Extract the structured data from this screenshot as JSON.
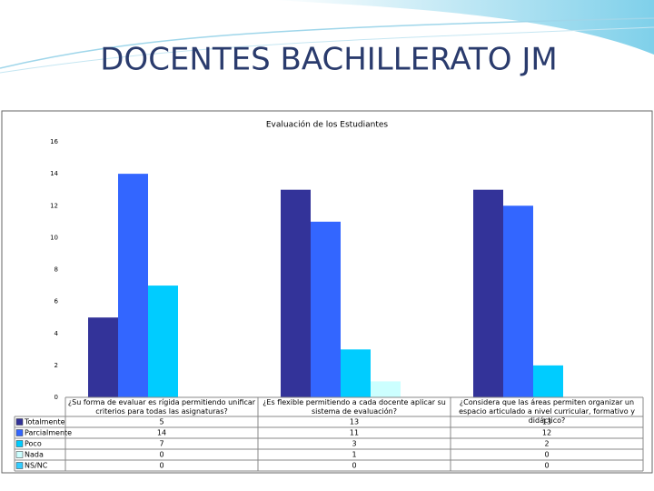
{
  "slide_title": "DOCENTES BACHILLERATO JM",
  "chart_data": {
    "type": "bar",
    "title": "Evaluación de los Estudiantes",
    "categories": [
      "¿Su forma de evaluar es rígida permitiendo unificar criterios para todas las asignaturas?",
      "¿Es flexible permitiendo a cada docente aplicar su sistema de evaluación?",
      "¿Considera que las áreas permiten organizar un espacio articulado a nivel curricular, formativo y didáctico?"
    ],
    "series": [
      {
        "name": "Totalmente",
        "color": "#333399",
        "values": [
          5,
          13,
          13
        ]
      },
      {
        "name": "Parcialmente",
        "color": "#3366ff",
        "values": [
          14,
          11,
          12
        ]
      },
      {
        "name": "Poco",
        "color": "#00ccff",
        "values": [
          7,
          3,
          2
        ]
      },
      {
        "name": "Nada",
        "color": "#ccffff",
        "values": [
          0,
          1,
          0
        ]
      },
      {
        "name": "NS/NC",
        "color": "#33ccff",
        "values": [
          0,
          0,
          0
        ]
      }
    ],
    "ylim": [
      0,
      16
    ],
    "yticks": [
      0,
      2,
      4,
      6,
      8,
      10,
      12,
      14,
      16
    ]
  }
}
